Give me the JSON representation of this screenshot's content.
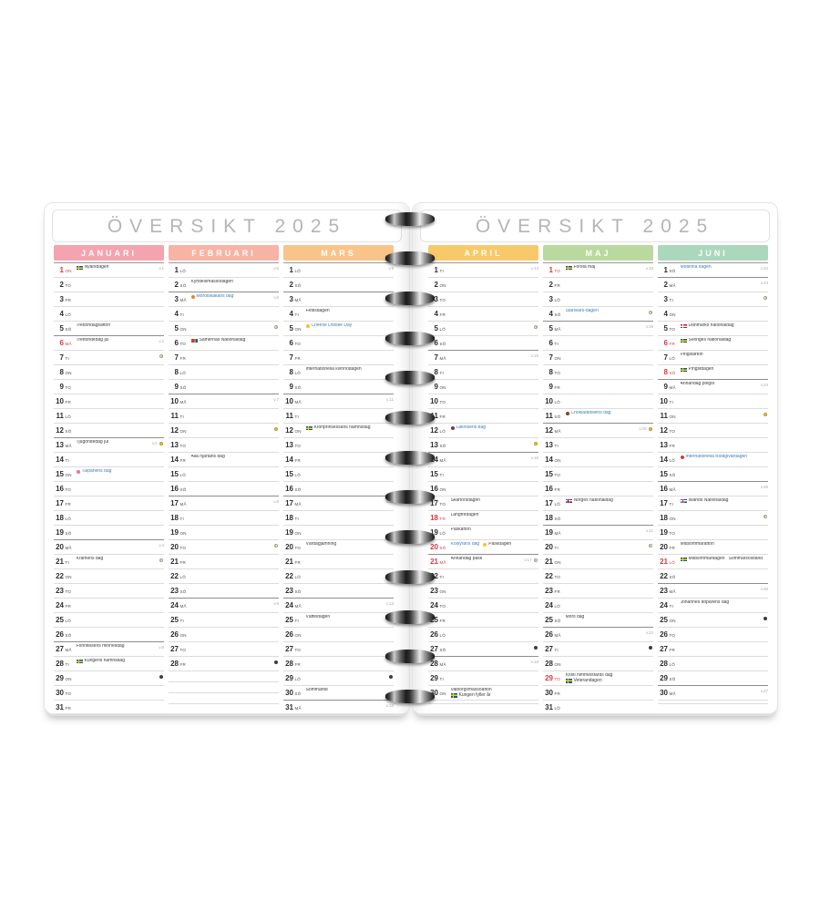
{
  "page_title": "ÖVERSIKT 2025",
  "colors": {
    "holiday_red": "#d8383e",
    "theme_blue": "#3e7dbd"
  },
  "months": [
    {
      "name": "JANUARI",
      "color": "#f4a4ae",
      "days": [
        {
          "n": 1,
          "d": "ON",
          "r": true,
          "w": "v.1",
          "e": [
            [
              {
                "i": "flag-se",
                "t": "Nyårsdagen"
              }
            ]
          ]
        },
        {
          "n": 2,
          "d": "TO"
        },
        {
          "n": 3,
          "d": "FR"
        },
        {
          "n": 4,
          "d": "LÖ"
        },
        {
          "n": 5,
          "d": "SÖ",
          "e": [
            [
              {
                "t": "Trettondagsafton"
              }
            ]
          ]
        },
        {
          "n": 6,
          "d": "MÅ",
          "r": true,
          "w": "v.2",
          "e": [
            [
              {
                "t": "Trettondedag jul"
              }
            ]
          ]
        },
        {
          "n": 7,
          "d": "TI",
          "m": "fq"
        },
        {
          "n": 8,
          "d": "ON"
        },
        {
          "n": 9,
          "d": "TO"
        },
        {
          "n": 10,
          "d": "FR"
        },
        {
          "n": 11,
          "d": "LÖ"
        },
        {
          "n": 12,
          "d": "SÖ"
        },
        {
          "n": 13,
          "d": "MÅ",
          "w": "v.3",
          "m": "full",
          "e": [
            [
              {
                "t": "Tjugondedag jul"
              }
            ]
          ]
        },
        {
          "n": 14,
          "d": "TI"
        },
        {
          "n": 15,
          "d": "ON",
          "e": [
            [
              {
                "i": "tulip",
                "t": "Tulpanens dag",
                "b": true
              }
            ]
          ]
        },
        {
          "n": 16,
          "d": "TO"
        },
        {
          "n": 17,
          "d": "FR"
        },
        {
          "n": 18,
          "d": "LÖ"
        },
        {
          "n": 19,
          "d": "SÖ"
        },
        {
          "n": 20,
          "d": "MÅ",
          "w": "v.4"
        },
        {
          "n": 21,
          "d": "TI",
          "m": "lq",
          "e": [
            [
              {
                "t": "Kramens dag"
              }
            ]
          ]
        },
        {
          "n": 22,
          "d": "ON"
        },
        {
          "n": 23,
          "d": "TO"
        },
        {
          "n": 24,
          "d": "FR"
        },
        {
          "n": 25,
          "d": "LÖ"
        },
        {
          "n": 26,
          "d": "SÖ"
        },
        {
          "n": 27,
          "d": "MÅ",
          "w": "v.5",
          "e": [
            [
              {
                "t": "Förintelsens minnesdag"
              }
            ]
          ]
        },
        {
          "n": 28,
          "d": "TI",
          "e": [
            [
              {
                "i": "flag-se",
                "t": "Kungens namnsdag"
              }
            ]
          ]
        },
        {
          "n": 29,
          "d": "ON",
          "m": "new"
        },
        {
          "n": 30,
          "d": "TO"
        },
        {
          "n": 31,
          "d": "FR"
        }
      ]
    },
    {
      "name": "FEBRUARI",
      "color": "#f7b3a4",
      "days": [
        {
          "n": 1,
          "d": "LÖ",
          "w": "v.5"
        },
        {
          "n": 2,
          "d": "SÖ",
          "e": [
            [
              {
                "t": "Kyndelsmässodagen"
              }
            ]
          ]
        },
        {
          "n": 3,
          "d": "MÅ",
          "w": "v.6",
          "e": [
            [
              {
                "i": "carrot",
                "t": "Morotskakans dag",
                "b": true
              }
            ]
          ]
        },
        {
          "n": 4,
          "d": "TI"
        },
        {
          "n": 5,
          "d": "ON",
          "m": "fq"
        },
        {
          "n": 6,
          "d": "TO",
          "e": [
            [
              {
                "i": "flag-sapmi",
                "t": "Samernas Nationaldag"
              }
            ]
          ]
        },
        {
          "n": 7,
          "d": "FR"
        },
        {
          "n": 8,
          "d": "LÖ"
        },
        {
          "n": 9,
          "d": "SÖ"
        },
        {
          "n": 10,
          "d": "MÅ",
          "w": "v.7"
        },
        {
          "n": 11,
          "d": "TI"
        },
        {
          "n": 12,
          "d": "ON",
          "m": "full"
        },
        {
          "n": 13,
          "d": "TO"
        },
        {
          "n": 14,
          "d": "FR",
          "e": [
            [
              {
                "t": "Alla hjärtans dag"
              }
            ]
          ]
        },
        {
          "n": 15,
          "d": "LÖ"
        },
        {
          "n": 16,
          "d": "SÖ"
        },
        {
          "n": 17,
          "d": "MÅ",
          "w": "v.8"
        },
        {
          "n": 18,
          "d": "TI"
        },
        {
          "n": 19,
          "d": "ON"
        },
        {
          "n": 20,
          "d": "TO",
          "m": "lq"
        },
        {
          "n": 21,
          "d": "FR"
        },
        {
          "n": 22,
          "d": "LÖ"
        },
        {
          "n": 23,
          "d": "SÖ"
        },
        {
          "n": 24,
          "d": "MÅ",
          "w": "v.9"
        },
        {
          "n": 25,
          "d": "TI"
        },
        {
          "n": 26,
          "d": "ON"
        },
        {
          "n": 27,
          "d": "TO"
        },
        {
          "n": 28,
          "d": "FR",
          "m": "new"
        }
      ]
    },
    {
      "name": "MARS",
      "color": "#f9c489",
      "days": [
        {
          "n": 1,
          "d": "LÖ",
          "w": "v.9"
        },
        {
          "n": 2,
          "d": "SÖ"
        },
        {
          "n": 3,
          "d": "MÅ",
          "w": "v.10"
        },
        {
          "n": 4,
          "d": "TI",
          "e": [
            [
              {
                "t": "Fettisdagen"
              }
            ]
          ]
        },
        {
          "n": 5,
          "d": "ON",
          "e": [
            [
              {
                "i": "cheese",
                "t": "Cheese Doodle Day",
                "b": true
              }
            ]
          ]
        },
        {
          "n": 6,
          "d": "TO",
          "m": "fq"
        },
        {
          "n": 7,
          "d": "FR"
        },
        {
          "n": 8,
          "d": "LÖ",
          "e": [
            [
              {
                "t": "Internationella kvinnodagen"
              }
            ]
          ]
        },
        {
          "n": 9,
          "d": "SÖ"
        },
        {
          "n": 10,
          "d": "MÅ",
          "w": "v.11"
        },
        {
          "n": 11,
          "d": "TI"
        },
        {
          "n": 12,
          "d": "ON",
          "e": [
            [
              {
                "i": "flag-se",
                "t": "Kronprinsessans namnsdag"
              }
            ]
          ]
        },
        {
          "n": 13,
          "d": "TO"
        },
        {
          "n": 14,
          "d": "FR",
          "m": "full"
        },
        {
          "n": 15,
          "d": "LÖ"
        },
        {
          "n": 16,
          "d": "SÖ"
        },
        {
          "n": 17,
          "d": "MÅ",
          "w": "v.12"
        },
        {
          "n": 18,
          "d": "TI"
        },
        {
          "n": 19,
          "d": "ON"
        },
        {
          "n": 20,
          "d": "TO",
          "e": [
            [
              {
                "t": "Vårdagjämning"
              }
            ]
          ]
        },
        {
          "n": 21,
          "d": "FR"
        },
        {
          "n": 22,
          "d": "LÖ",
          "m": "lq"
        },
        {
          "n": 23,
          "d": "SÖ"
        },
        {
          "n": 24,
          "d": "MÅ",
          "w": "v.13"
        },
        {
          "n": 25,
          "d": "TI",
          "e": [
            [
              {
                "t": "Våffeldagen"
              }
            ]
          ]
        },
        {
          "n": 26,
          "d": "ON"
        },
        {
          "n": 27,
          "d": "TO"
        },
        {
          "n": 28,
          "d": "FR"
        },
        {
          "n": 29,
          "d": "LÖ",
          "m": "new"
        },
        {
          "n": 30,
          "d": "SÖ",
          "e": [
            [
              {
                "t": "Sommartid"
              }
            ]
          ]
        },
        {
          "n": 31,
          "d": "MÅ",
          "w": "v.14"
        }
      ]
    },
    {
      "name": "APRIL",
      "color": "#f8c96a",
      "days": [
        {
          "n": 1,
          "d": "TI",
          "w": "v.14"
        },
        {
          "n": 2,
          "d": "ON"
        },
        {
          "n": 3,
          "d": "TO"
        },
        {
          "n": 4,
          "d": "FR"
        },
        {
          "n": 5,
          "d": "LÖ",
          "m": "fq"
        },
        {
          "n": 6,
          "d": "SÖ"
        },
        {
          "n": 7,
          "d": "MÅ",
          "w": "v.15"
        },
        {
          "n": 8,
          "d": "TI"
        },
        {
          "n": 9,
          "d": "ON"
        },
        {
          "n": 10,
          "d": "TO"
        },
        {
          "n": 11,
          "d": "FR"
        },
        {
          "n": 12,
          "d": "LÖ",
          "e": [
            [
              {
                "i": "licorice",
                "t": "Lakritsens dag",
                "b": true
              }
            ]
          ]
        },
        {
          "n": 13,
          "d": "SÖ",
          "m": "full"
        },
        {
          "n": 14,
          "d": "MÅ",
          "w": "v.16"
        },
        {
          "n": 15,
          "d": "TI"
        },
        {
          "n": 16,
          "d": "ON"
        },
        {
          "n": 17,
          "d": "TO",
          "e": [
            [
              {
                "t": "Skärtorsdagen"
              }
            ]
          ]
        },
        {
          "n": 18,
          "d": "FR",
          "r": true,
          "e": [
            [
              {
                "t": "Långfredagen"
              }
            ]
          ]
        },
        {
          "n": 19,
          "d": "LÖ",
          "e": [
            [
              {
                "t": "Påskafton"
              }
            ]
          ]
        },
        {
          "n": 20,
          "d": "SÖ",
          "r": true,
          "e": [
            [
              {
                "t": "Kolsyrans dag",
                "b": true
              },
              {
                "i": "chick",
                "t": "Påskdagen"
              }
            ]
          ]
        },
        {
          "n": 21,
          "d": "MÅ",
          "r": true,
          "w": "v.17",
          "m": "lq",
          "e": [
            [
              {
                "t": "Annandag påsk"
              }
            ]
          ]
        },
        {
          "n": 22,
          "d": "TI"
        },
        {
          "n": 23,
          "d": "ON"
        },
        {
          "n": 24,
          "d": "TO"
        },
        {
          "n": 25,
          "d": "FR"
        },
        {
          "n": 26,
          "d": "LÖ"
        },
        {
          "n": 27,
          "d": "SÖ",
          "m": "new"
        },
        {
          "n": 28,
          "d": "MÅ",
          "w": "v.18"
        },
        {
          "n": 29,
          "d": "TI"
        },
        {
          "n": 30,
          "d": "ON",
          "e": [
            [
              {
                "t": "Valborgsmässoafton"
              }
            ],
            [
              {
                "i": "flag-se",
                "t": "Kungen fyller år"
              }
            ]
          ]
        }
      ]
    },
    {
      "name": "MAJ",
      "color": "#b9d99e",
      "days": [
        {
          "n": 1,
          "d": "TO",
          "r": true,
          "w": "v.18",
          "e": [
            [
              {
                "i": "flag-se",
                "t": "Första maj"
              }
            ]
          ]
        },
        {
          "n": 2,
          "d": "FR"
        },
        {
          "n": 3,
          "d": "LÖ"
        },
        {
          "n": 4,
          "d": "SÖ",
          "m": "fq",
          "e": [
            [
              {
                "t": "StarWars-dagen",
                "b": true
              }
            ]
          ]
        },
        {
          "n": 5,
          "d": "MÅ",
          "w": "v.19"
        },
        {
          "n": 6,
          "d": "TI"
        },
        {
          "n": 7,
          "d": "ON"
        },
        {
          "n": 8,
          "d": "TO"
        },
        {
          "n": 9,
          "d": "FR"
        },
        {
          "n": 10,
          "d": "LÖ"
        },
        {
          "n": 11,
          "d": "SÖ",
          "e": [
            [
              {
                "i": "choc",
                "t": "Chokladbollens dag",
                "b": true
              }
            ]
          ]
        },
        {
          "n": 12,
          "d": "MÅ",
          "w": "v.20",
          "m": "full"
        },
        {
          "n": 13,
          "d": "TI"
        },
        {
          "n": 14,
          "d": "ON"
        },
        {
          "n": 15,
          "d": "TO"
        },
        {
          "n": 16,
          "d": "FR"
        },
        {
          "n": 17,
          "d": "LÖ",
          "e": [
            [
              {
                "i": "flag-no",
                "t": "Norges nationaldag"
              }
            ]
          ]
        },
        {
          "n": 18,
          "d": "SÖ"
        },
        {
          "n": 19,
          "d": "MÅ",
          "w": "v.21"
        },
        {
          "n": 20,
          "d": "TI",
          "m": "lq"
        },
        {
          "n": 21,
          "d": "ON"
        },
        {
          "n": 22,
          "d": "TO"
        },
        {
          "n": 23,
          "d": "FR"
        },
        {
          "n": 24,
          "d": "LÖ"
        },
        {
          "n": 25,
          "d": "SÖ",
          "e": [
            [
              {
                "t": "Mors dag"
              }
            ]
          ]
        },
        {
          "n": 26,
          "d": "MÅ",
          "w": "v.22"
        },
        {
          "n": 27,
          "d": "TI",
          "m": "new"
        },
        {
          "n": 28,
          "d": "ON"
        },
        {
          "n": 29,
          "d": "TO",
          "r": true,
          "e": [
            [
              {
                "t": "Kristi himmelsfärds dag"
              }
            ],
            [
              {
                "i": "flag-se",
                "t": "Veterandagen"
              }
            ]
          ]
        },
        {
          "n": 30,
          "d": "FR"
        },
        {
          "n": 31,
          "d": "LÖ"
        }
      ]
    },
    {
      "name": "JUNI",
      "color": "#abd8bd",
      "days": [
        {
          "n": 1,
          "d": "SÖ",
          "w": "v.22",
          "e": [
            [
              {
                "t": "Mobilfria dagen",
                "b": true
              }
            ]
          ]
        },
        {
          "n": 2,
          "d": "MÅ",
          "w": "v.23"
        },
        {
          "n": 3,
          "d": "TI",
          "m": "fq"
        },
        {
          "n": 4,
          "d": "ON"
        },
        {
          "n": 5,
          "d": "TO",
          "e": [
            [
              {
                "i": "flag-dk",
                "t": "Danmarks nationaldag"
              }
            ]
          ]
        },
        {
          "n": 6,
          "d": "FR",
          "r": true,
          "e": [
            [
              {
                "i": "flag-se",
                "t": "Sveriges nationaldag"
              }
            ]
          ]
        },
        {
          "n": 7,
          "d": "LÖ",
          "e": [
            [
              {
                "t": "Pingstafton"
              }
            ]
          ]
        },
        {
          "n": 8,
          "d": "SÖ",
          "r": true,
          "e": [
            [
              {
                "i": "flag-se",
                "t": "Pingstdagen"
              }
            ]
          ]
        },
        {
          "n": 9,
          "d": "MÅ",
          "w": "v.24",
          "e": [
            [
              {
                "t": "Annandag pingst"
              }
            ]
          ]
        },
        {
          "n": 10,
          "d": "TI"
        },
        {
          "n": 11,
          "d": "ON",
          "m": "full"
        },
        {
          "n": 12,
          "d": "TO"
        },
        {
          "n": 13,
          "d": "FR"
        },
        {
          "n": 14,
          "d": "LÖ",
          "e": [
            [
              {
                "i": "blood",
                "t": "Internationella Blodgivardagen",
                "b": true
              }
            ]
          ]
        },
        {
          "n": 15,
          "d": "SÖ"
        },
        {
          "n": 16,
          "d": "MÅ",
          "w": "v.25"
        },
        {
          "n": 17,
          "d": "TI",
          "e": [
            [
              {
                "i": "flag-is",
                "t": "Islands Nationaldag"
              }
            ]
          ]
        },
        {
          "n": 18,
          "d": "ON",
          "m": "lq"
        },
        {
          "n": 19,
          "d": "TO"
        },
        {
          "n": 20,
          "d": "FR",
          "e": [
            [
              {
                "t": "Midsommarafton"
              }
            ]
          ]
        },
        {
          "n": 21,
          "d": "LÖ",
          "r": true,
          "e": [
            [
              {
                "i": "flag-se",
                "t": "Midsommardagen"
              },
              {
                "t": "Sommarsolstånd"
              }
            ]
          ]
        },
        {
          "n": 22,
          "d": "SÖ"
        },
        {
          "n": 23,
          "d": "MÅ",
          "w": "v.26"
        },
        {
          "n": 24,
          "d": "TI",
          "e": [
            [
              {
                "t": "Johannes döparens dag"
              }
            ]
          ]
        },
        {
          "n": 25,
          "d": "ON",
          "m": "new"
        },
        {
          "n": 26,
          "d": "TO"
        },
        {
          "n": 27,
          "d": "FR"
        },
        {
          "n": 28,
          "d": "LÖ"
        },
        {
          "n": 29,
          "d": "SÖ"
        },
        {
          "n": 30,
          "d": "MÅ",
          "w": "v.27"
        }
      ]
    }
  ]
}
